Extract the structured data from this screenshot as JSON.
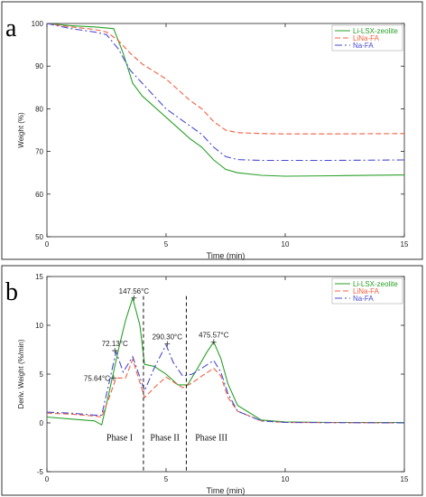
{
  "chart_data": [
    {
      "panel": "a",
      "type": "line",
      "xlabel": "Time (min)",
      "ylabel": "Weight (%)",
      "xlim": [
        0,
        15
      ],
      "ylim": [
        50,
        100
      ],
      "xticks": [
        0,
        5,
        10,
        15
      ],
      "yticks": [
        50,
        60,
        70,
        80,
        90,
        100
      ],
      "legend_position": "top-right",
      "series": [
        {
          "name": "Li-LSX-zeolite",
          "color": "#2aa02a",
          "dash": "solid",
          "x": [
            0,
            1,
            2,
            2.8,
            3.2,
            3.6,
            4,
            5,
            6,
            6.5,
            7,
            7.5,
            8,
            9,
            10,
            12,
            15
          ],
          "y": [
            100,
            99.5,
            99.2,
            98.8,
            93,
            86,
            83,
            78,
            73,
            71,
            68,
            65.8,
            65,
            64.4,
            64.2,
            64.3,
            64.5
          ]
        },
        {
          "name": "LiNa-FA",
          "color": "#f06040",
          "dash": "6,3",
          "x": [
            0,
            1,
            2,
            2.5,
            3,
            3.5,
            4,
            5,
            6,
            6.5,
            7,
            7.5,
            8,
            9,
            10,
            12,
            15
          ],
          "y": [
            100,
            99.2,
            98.6,
            98,
            96,
            93,
            90.5,
            87,
            82,
            80,
            77,
            75,
            74.4,
            74.2,
            74.1,
            74.1,
            74.2
          ]
        },
        {
          "name": "Na-FA",
          "color": "#4a4ad0",
          "dash": "8,3,2,3",
          "x": [
            0,
            1,
            2,
            2.5,
            3,
            3.5,
            4,
            5,
            6,
            6.5,
            7,
            7.5,
            8,
            9,
            10,
            12,
            15
          ],
          "y": [
            100,
            98.8,
            98,
            97.4,
            94,
            89,
            86,
            80,
            76,
            74,
            71,
            68.8,
            68.1,
            67.9,
            67.9,
            67.9,
            68
          ]
        }
      ]
    },
    {
      "panel": "b",
      "type": "line",
      "xlabel": "Time (min)",
      "ylabel": "Deriv. Weight (%/min)",
      "xlim": [
        0,
        15
      ],
      "ylim": [
        -5,
        15
      ],
      "xticks": [
        0,
        5,
        10,
        15
      ],
      "yticks": [
        -5,
        0,
        5,
        10,
        15
      ],
      "legend_position": "top-right",
      "series": [
        {
          "name": "Li-LSX-zeolite",
          "color": "#2aa02a",
          "dash": "solid",
          "x": [
            0,
            1,
            2,
            2.3,
            2.6,
            3,
            3.3,
            3.6,
            3.9,
            4.1,
            4.5,
            5,
            5.5,
            5.9,
            6.3,
            6.7,
            7,
            7.3,
            7.6,
            8,
            9,
            10,
            12,
            15
          ],
          "y": [
            0.6,
            0.4,
            0.2,
            -0.2,
            3,
            7.5,
            10.5,
            12.8,
            10,
            6,
            5.8,
            5,
            3.9,
            3.9,
            5.5,
            7.2,
            8.3,
            6.6,
            4,
            1.8,
            0.3,
            0.1,
            0.05,
            0.05
          ]
        },
        {
          "name": "LiNa-FA",
          "color": "#f06040",
          "dash": "6,3",
          "x": [
            0,
            1,
            2,
            2.3,
            2.6,
            2.9,
            3.3,
            3.6,
            4.1,
            4.5,
            5,
            5.3,
            5.7,
            6.1,
            6.5,
            7,
            7.3,
            7.6,
            8,
            9,
            10,
            15
          ],
          "y": [
            1,
            0.9,
            0.7,
            0.6,
            2.5,
            4.6,
            4.6,
            6.5,
            2.6,
            3.6,
            4.7,
            4.2,
            3.6,
            4.1,
            4.8,
            5.6,
            4.8,
            2.6,
            1.2,
            0.2,
            0.05,
            0
          ]
        },
        {
          "name": "Na-FA",
          "color": "#4a4ad0",
          "dash": "8,3,2,3",
          "x": [
            0,
            1,
            2,
            2.3,
            2.6,
            2.9,
            3.2,
            3.6,
            4.1,
            4.5,
            5,
            5.3,
            5.7,
            6.1,
            6.5,
            7,
            7.3,
            7.6,
            8,
            9,
            10,
            15
          ],
          "y": [
            1.1,
            1,
            0.8,
            0.8,
            4,
            7.3,
            5.2,
            6.8,
            3.3,
            5.6,
            8,
            6.2,
            4.8,
            5,
            5.6,
            6.4,
            5.2,
            3,
            1.2,
            0.2,
            0.05,
            0
          ]
        }
      ],
      "annotations": [
        {
          "text": "147.56°C",
          "x": 3.65,
          "y": 12.8
        },
        {
          "text": "72.13°C",
          "x": 2.85,
          "y": 7.4
        },
        {
          "text": "75.64°C",
          "x": 2.8,
          "y": 4.6
        },
        {
          "text": "290.30°C",
          "x": 5.05,
          "y": 8.1
        },
        {
          "text": "475.57°C",
          "x": 7.0,
          "y": 8.3
        }
      ],
      "phase_dividers": [
        4.05,
        5.85
      ],
      "phase_labels": [
        {
          "text": "Phase I",
          "x": 3.05
        },
        {
          "text": "Phase II",
          "x": 4.95
        },
        {
          "text": "Phase III",
          "x": 6.9
        }
      ]
    }
  ],
  "panel_letters": [
    "a",
    "b"
  ]
}
